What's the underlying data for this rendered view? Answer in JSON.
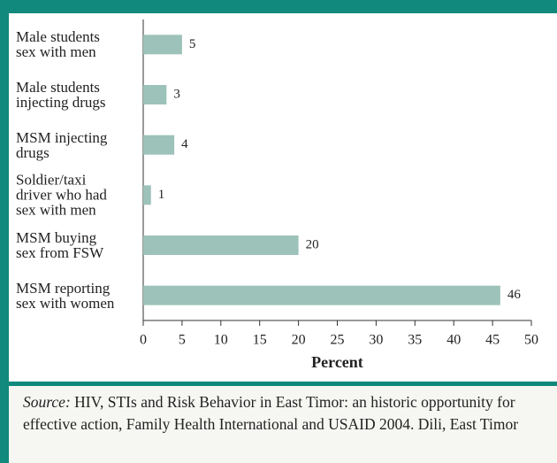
{
  "chart_data": {
    "type": "bar",
    "orientation": "horizontal",
    "categories": [
      "Male students\nsex with men",
      "Male students\ninjecting drugs",
      "MSM injecting\ndrugs",
      "Soldier/taxi\ndriver who had\nsex with men",
      "MSM buying\nsex from FSW",
      "MSM reporting\nsex with women"
    ],
    "values": [
      5,
      3,
      4,
      1,
      20,
      46
    ],
    "color": "#9cc2b9",
    "xlabel": "Percent",
    "xlim": [
      0,
      50
    ],
    "xticks": [
      0,
      5,
      10,
      15,
      20,
      25,
      30,
      35,
      40,
      45,
      50
    ],
    "source_label": "Source:",
    "source": "HIV, STIs and Risk Behavior in East Timor: an historic opportunity for effective action, Family Health International and USAID 2004. Dili, East Timor"
  }
}
